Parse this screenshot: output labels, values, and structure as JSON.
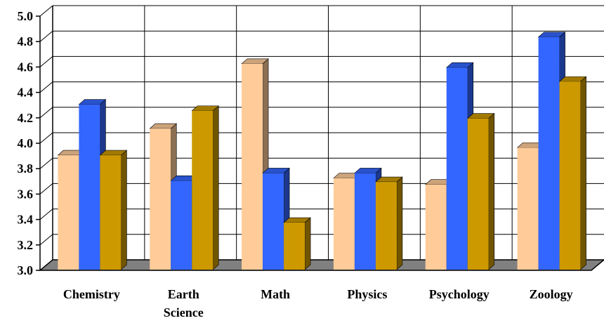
{
  "chart_data": {
    "type": "bar",
    "title": "",
    "xlabel": "",
    "ylabel": "",
    "ylim": [
      3.0,
      5.0
    ],
    "yticks": [
      "3.0",
      "3.2",
      "3.4",
      "3.6",
      "3.8",
      "4.0",
      "4.2",
      "4.4",
      "4.6",
      "4.8",
      "5.0"
    ],
    "grid": true,
    "legend": "none",
    "categories": [
      {
        "lines": [
          "Chemistry"
        ]
      },
      {
        "lines": [
          "Earth",
          "Science"
        ]
      },
      {
        "lines": [
          "Math"
        ]
      },
      {
        "lines": [
          "Physics"
        ]
      },
      {
        "lines": [
          "Psychology"
        ]
      },
      {
        "lines": [
          "Zoology"
        ]
      }
    ],
    "series": [
      {
        "color": "#FFCC99",
        "values": [
          3.9,
          4.11,
          4.62,
          3.72,
          3.67,
          3.96
        ]
      },
      {
        "color": "#3366FF",
        "values": [
          4.3,
          3.7,
          3.76,
          3.76,
          4.59,
          4.83
        ]
      },
      {
        "color": "#CC9900",
        "values": [
          3.9,
          4.25,
          3.37,
          3.69,
          4.19,
          4.48
        ]
      }
    ],
    "colors": {
      "floor": "#808080",
      "grid": "#000000"
    }
  }
}
